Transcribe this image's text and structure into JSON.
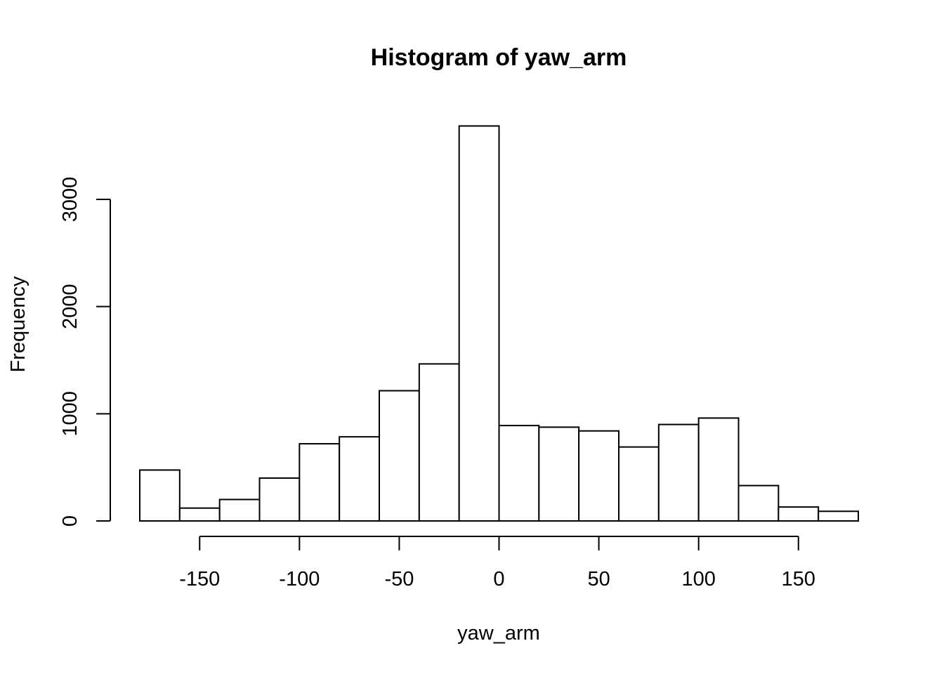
{
  "chart_data": {
    "type": "bar",
    "title": "Histogram of yaw_arm",
    "xlabel": "yaw_arm",
    "ylabel": "Frequency",
    "bins": [
      {
        "from": -180,
        "to": -160,
        "count": 475
      },
      {
        "from": -160,
        "to": -140,
        "count": 120
      },
      {
        "from": -140,
        "to": -120,
        "count": 200
      },
      {
        "from": -120,
        "to": -100,
        "count": 400
      },
      {
        "from": -100,
        "to": -80,
        "count": 720
      },
      {
        "from": -80,
        "to": -60,
        "count": 785
      },
      {
        "from": -60,
        "to": -40,
        "count": 1215
      },
      {
        "from": -40,
        "to": -20,
        "count": 1465
      },
      {
        "from": -20,
        "to": 0,
        "count": 3685
      },
      {
        "from": 0,
        "to": 20,
        "count": 890
      },
      {
        "from": 20,
        "to": 40,
        "count": 875
      },
      {
        "from": 40,
        "to": 60,
        "count": 840
      },
      {
        "from": 60,
        "to": 80,
        "count": 690
      },
      {
        "from": 80,
        "to": 100,
        "count": 900
      },
      {
        "from": 100,
        "to": 120,
        "count": 960
      },
      {
        "from": 120,
        "to": 140,
        "count": 330
      },
      {
        "from": 140,
        "to": 160,
        "count": 130
      },
      {
        "from": 160,
        "to": 180,
        "count": 90
      }
    ],
    "xlim": [
      -180,
      180
    ],
    "ylim": [
      0,
      3685
    ],
    "x_ticks": [
      -150,
      -100,
      -50,
      0,
      50,
      100,
      150
    ],
    "x_tick_labels": [
      "-150",
      "-100",
      "-50",
      "0",
      "50",
      "100",
      "150"
    ],
    "y_ticks": [
      0,
      1000,
      2000,
      3000
    ],
    "y_tick_labels": [
      "0",
      "1000",
      "2000",
      "3000"
    ],
    "grid": false,
    "colors": {
      "bar_fill": "#ffffff",
      "bar_stroke": "#000000"
    }
  }
}
